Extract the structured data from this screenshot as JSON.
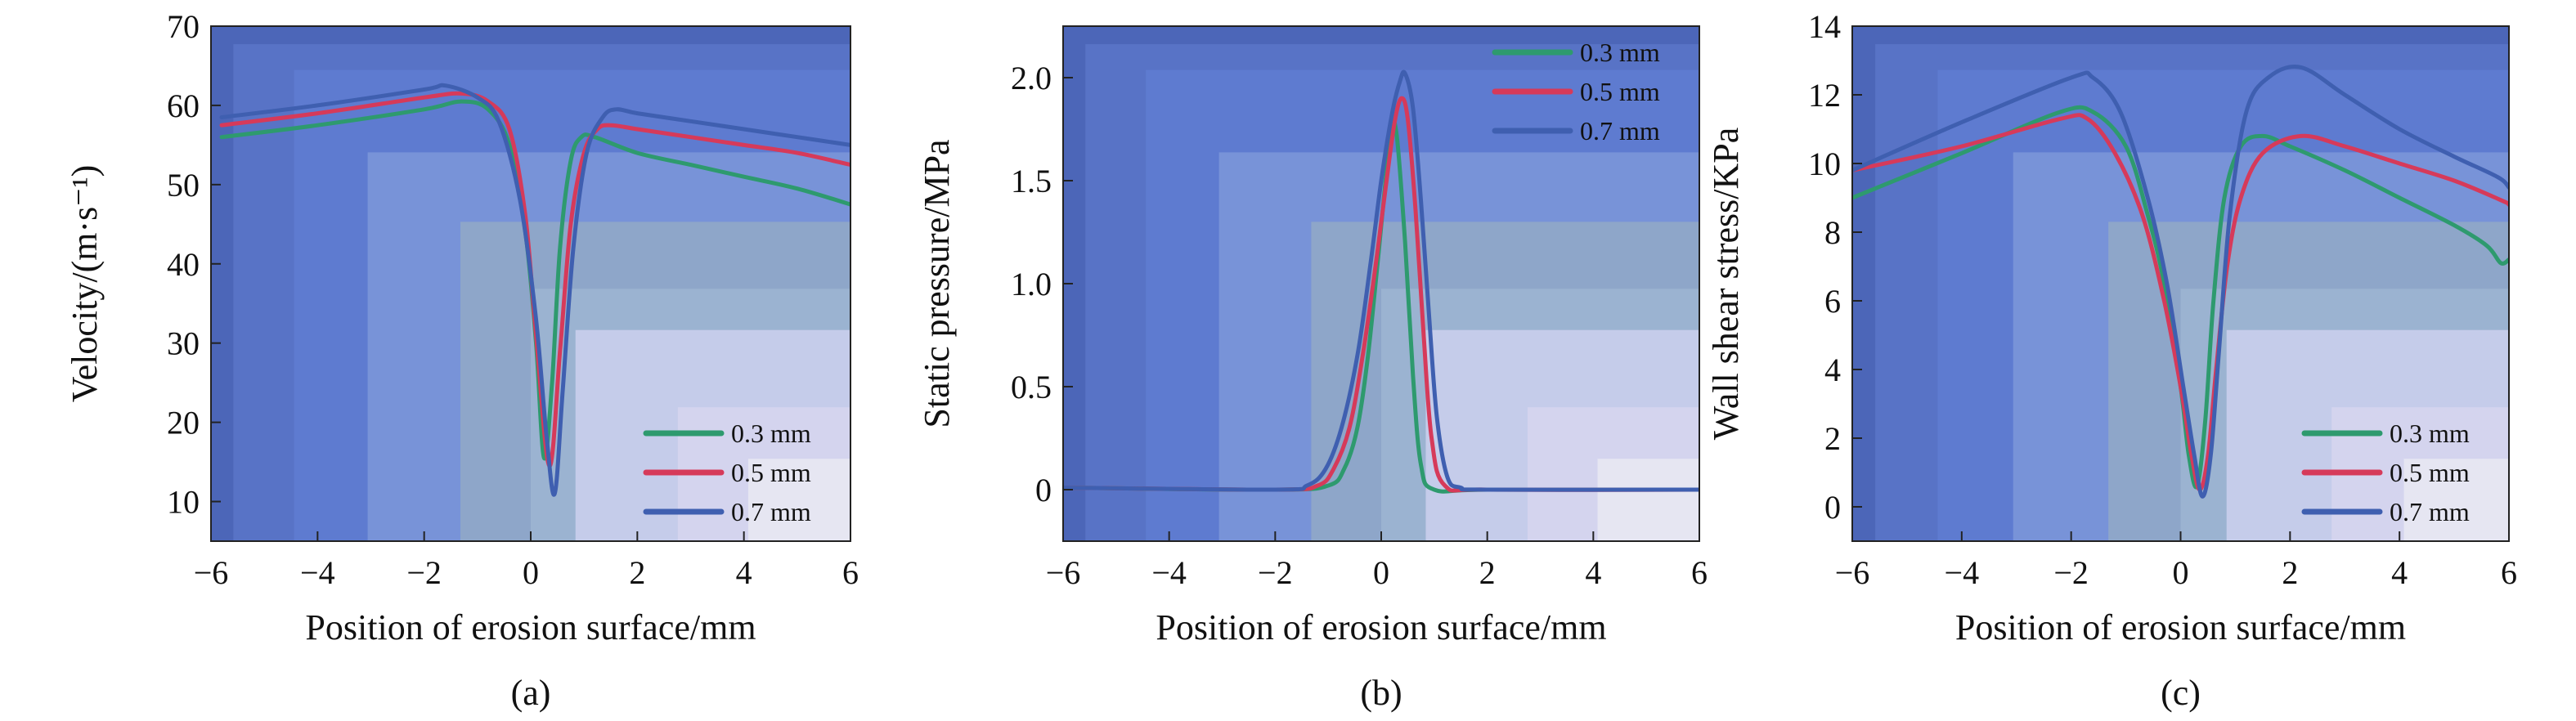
{
  "chart_data": [
    {
      "type": "line",
      "caption": "(a)",
      "xlabel": "Position of erosion surface/mm",
      "ylabel": "Velocity/(m·s⁻¹)",
      "xlim": [
        -6,
        6
      ],
      "ylim": [
        5,
        70
      ],
      "xticks": [
        -6,
        -4,
        -2,
        0,
        2,
        4,
        6
      ],
      "xtick_labels": [
        "−6",
        "−4",
        "−2",
        "0",
        "2",
        "4",
        "6"
      ],
      "yticks": [
        10,
        20,
        30,
        40,
        50,
        60,
        70
      ],
      "ytick_labels": [
        "10",
        "20",
        "30",
        "40",
        "50",
        "60",
        "70"
      ],
      "legend_position": "bottom-right",
      "series": [
        {
          "name": "0.3 mm",
          "color": "#2e9a6e",
          "x": [
            -5.8,
            -4,
            -2,
            -1.3,
            -0.8,
            -0.4,
            -0.1,
            0.1,
            0.25,
            0.4,
            0.55,
            0.75,
            0.95,
            1.2,
            2,
            3,
            4,
            5,
            6
          ],
          "y": [
            56,
            57.5,
            59.5,
            60.5,
            59.5,
            55,
            44,
            30,
            15.5,
            25,
            42,
            53,
            56,
            56,
            54,
            52.5,
            51,
            49.5,
            47.5
          ]
        },
        {
          "name": "0.5 mm",
          "color": "#d63a5a",
          "x": [
            -5.8,
            -4,
            -2,
            -1.3,
            -0.8,
            -0.4,
            -0.1,
            0.1,
            0.35,
            0.55,
            0.75,
            1,
            1.25,
            1.5,
            2,
            3,
            4,
            5,
            6
          ],
          "y": [
            57.5,
            59,
            61,
            61.5,
            60.5,
            57,
            46,
            31,
            14.5,
            29,
            45,
            54,
            57,
            57.5,
            57,
            56,
            55,
            54,
            52.5
          ]
        },
        {
          "name": "0.7 mm",
          "color": "#3f5fb0",
          "x": [
            -5.8,
            -4,
            -2,
            -1.6,
            -1,
            -0.6,
            -0.2,
            0.1,
            0.3,
            0.45,
            0.6,
            0.8,
            1.05,
            1.35,
            1.6,
            2,
            3,
            4,
            5,
            6
          ],
          "y": [
            58.5,
            60,
            62,
            62.5,
            61,
            58,
            48,
            33,
            18,
            11,
            24,
            42,
            54,
            58.5,
            59.5,
            59,
            58,
            57,
            56,
            55
          ]
        }
      ]
    },
    {
      "type": "line",
      "caption": "(b)",
      "xlabel": "Position of erosion surface/mm",
      "ylabel": "Static pressure/MPa",
      "xlim": [
        -6,
        6
      ],
      "ylim": [
        -0.25,
        2.25
      ],
      "xticks": [
        -6,
        -4,
        -2,
        0,
        2,
        4,
        6
      ],
      "xtick_labels": [
        "−6",
        "−4",
        "−2",
        "0",
        "2",
        "4",
        "6"
      ],
      "yticks": [
        0,
        0.5,
        1.0,
        1.5,
        2.0
      ],
      "ytick_labels": [
        "0",
        "0.5",
        "1.0",
        "1.5",
        "2.0"
      ],
      "legend_position": "top-right",
      "series": [
        {
          "name": "0.3 mm",
          "color": "#2e9a6e",
          "x": [
            -6,
            -2,
            -1,
            -0.7,
            -0.45,
            -0.25,
            -0.05,
            0.1,
            0.2,
            0.3,
            0.45,
            0.6,
            0.75,
            1,
            2,
            6
          ],
          "y": [
            0.01,
            0,
            0.02,
            0.1,
            0.3,
            0.65,
            1.15,
            1.55,
            1.78,
            1.7,
            1.2,
            0.55,
            0.12,
            0,
            0,
            0
          ]
        },
        {
          "name": "0.5 mm",
          "color": "#d63a5a",
          "x": [
            -6,
            -2,
            -1.2,
            -0.9,
            -0.6,
            -0.35,
            -0.1,
            0.1,
            0.25,
            0.38,
            0.5,
            0.65,
            0.8,
            0.95,
            1.2,
            2,
            6
          ],
          "y": [
            0.01,
            0,
            0.02,
            0.1,
            0.3,
            0.65,
            1.1,
            1.5,
            1.78,
            1.9,
            1.8,
            1.35,
            0.75,
            0.25,
            0.02,
            0,
            0
          ]
        },
        {
          "name": "0.7 mm",
          "color": "#3f5fb0",
          "x": [
            -6,
            -2,
            -1.4,
            -1.05,
            -0.75,
            -0.45,
            -0.2,
            0,
            0.2,
            0.35,
            0.45,
            0.6,
            0.75,
            0.9,
            1.05,
            1.25,
            1.5,
            2,
            6
          ],
          "y": [
            0.01,
            0,
            0.02,
            0.1,
            0.3,
            0.65,
            1.1,
            1.5,
            1.82,
            1.98,
            2.02,
            1.85,
            1.4,
            0.85,
            0.35,
            0.06,
            0.01,
            0,
            0
          ]
        }
      ]
    },
    {
      "type": "line",
      "caption": "(c)",
      "xlabel": "Position of erosion surface/mm",
      "ylabel": "Wall shear stress/KPa",
      "xlim": [
        -6,
        6
      ],
      "ylim": [
        -1,
        14
      ],
      "xticks": [
        -6,
        -4,
        -2,
        0,
        2,
        4,
        6
      ],
      "xtick_labels": [
        "−6",
        "−4",
        "−2",
        "0",
        "2",
        "4",
        "6"
      ],
      "yticks": [
        0,
        2,
        4,
        6,
        8,
        10,
        12,
        14
      ],
      "ytick_labels": [
        "0",
        "2",
        "4",
        "6",
        "8",
        "10",
        "12",
        "14"
      ],
      "legend_position": "bottom-right",
      "series": [
        {
          "name": "0.3 mm",
          "color": "#2e9a6e",
          "x": [
            -6,
            -4,
            -2.2,
            -1.6,
            -1,
            -0.6,
            -0.3,
            0,
            0.15,
            0.3,
            0.45,
            0.6,
            0.8,
            1.1,
            1.5,
            2,
            3,
            4,
            5,
            5.6,
            5.85,
            6
          ],
          "y": [
            9.0,
            10.3,
            11.5,
            11.5,
            10.5,
            8.5,
            6.5,
            3.5,
            1.5,
            0.6,
            2.5,
            6,
            9,
            10.5,
            10.8,
            10.5,
            9.8,
            9.0,
            8.2,
            7.6,
            7.1,
            7.2
          ]
        },
        {
          "name": "0.5 mm",
          "color": "#d63a5a",
          "x": [
            -6,
            -4,
            -2.2,
            -1.7,
            -1.2,
            -0.7,
            -0.3,
            0,
            0.2,
            0.35,
            0.5,
            0.65,
            0.85,
            1.1,
            1.5,
            2.2,
            3,
            4,
            5,
            5.9,
            6
          ],
          "y": [
            9.8,
            10.5,
            11.3,
            11.3,
            10.3,
            8.5,
            6,
            3.5,
            1.5,
            0.5,
            1.5,
            4,
            7,
            9,
            10.3,
            10.8,
            10.5,
            10,
            9.5,
            8.9,
            8.8
          ]
        },
        {
          "name": "0.7 mm",
          "color": "#3f5fb0",
          "x": [
            -6,
            -4,
            -2,
            -1.6,
            -1.1,
            -0.6,
            -0.25,
            0.05,
            0.25,
            0.4,
            0.55,
            0.7,
            0.9,
            1.2,
            1.6,
            2.2,
            3,
            4,
            5,
            5.8,
            6
          ],
          "y": [
            9.8,
            11.2,
            12.5,
            12.5,
            11.5,
            9,
            6.5,
            3.5,
            1.5,
            0.3,
            1.5,
            4.5,
            8.5,
            11.5,
            12.5,
            12.8,
            12,
            11,
            10.2,
            9.6,
            9.3
          ]
        }
      ]
    }
  ]
}
